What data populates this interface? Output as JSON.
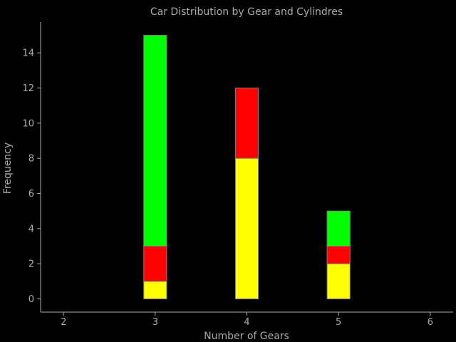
{
  "chart_data": {
    "type": "bar",
    "stacked": true,
    "title": "Car Distribution by Gear and Cylindres",
    "xlabel": "Number of Gears",
    "ylabel": "Frequency",
    "xlim": [
      1.75,
      6.25
    ],
    "ylim": [
      -0.75,
      15.75
    ],
    "xticks": [
      2,
      3,
      4,
      5,
      6
    ],
    "yticks": [
      0,
      2,
      4,
      6,
      8,
      10,
      12,
      14
    ],
    "bar_width": 0.25,
    "grid": false,
    "categories": [
      3,
      4,
      5
    ],
    "series": [
      {
        "color": "#ffff00",
        "values": [
          1,
          8,
          2
        ]
      },
      {
        "color": "#ff0000",
        "values": [
          2,
          4,
          1
        ]
      },
      {
        "color": "#00ff00",
        "values": [
          12,
          0,
          2
        ]
      }
    ],
    "colors": {
      "background": "#000000",
      "axis": "#aaaaaa",
      "text": "#aaaaaa",
      "bar_edge": "#808080"
    }
  }
}
